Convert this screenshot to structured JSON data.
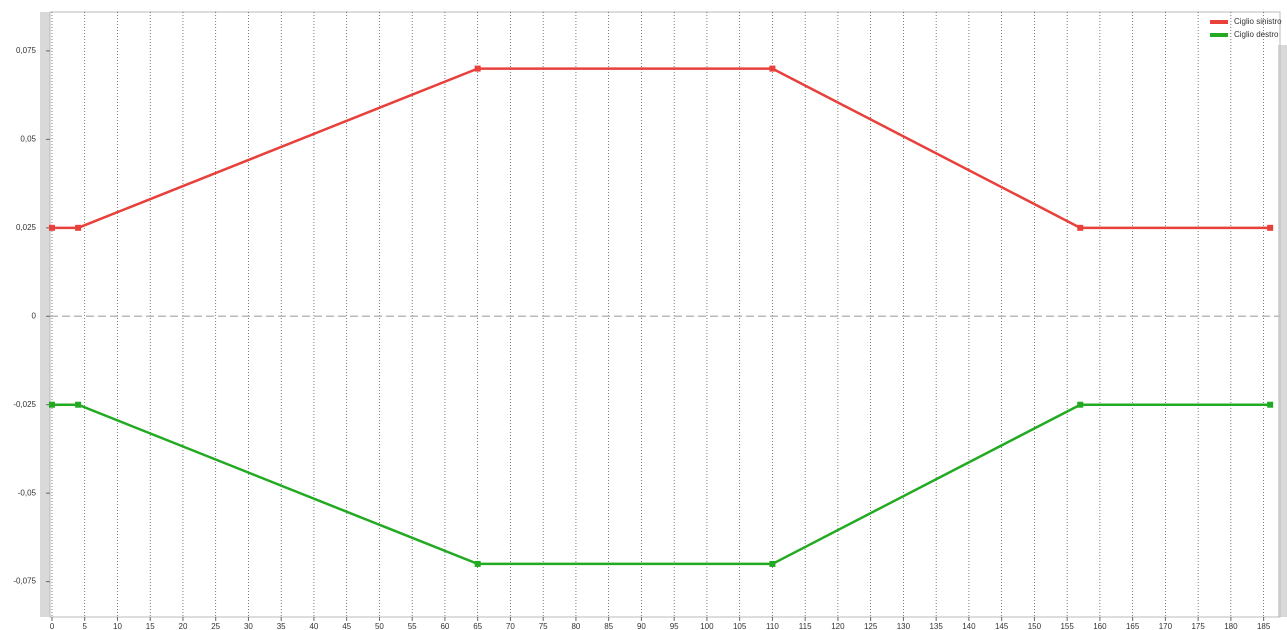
{
  "chart_data": {
    "type": "line",
    "x": [
      0,
      4,
      65,
      110,
      157,
      186
    ],
    "series": [
      {
        "name": "Ciglio sinistro",
        "color": "#e8403a",
        "values": [
          0.025,
          0.025,
          0.07,
          0.07,
          0.025,
          0.025
        ]
      },
      {
        "name": "Ciglio destro",
        "color": "#22aa22",
        "values": [
          -0.025,
          -0.025,
          -0.07,
          -0.07,
          -0.025,
          -0.025
        ]
      }
    ],
    "xlim": [
      -0.3,
      187.5
    ],
    "xticks": [
      0,
      5,
      10,
      15,
      20,
      25,
      30,
      35,
      40,
      45,
      50,
      55,
      60,
      65,
      70,
      75,
      80,
      85,
      90,
      95,
      100,
      105,
      110,
      115,
      120,
      125,
      130,
      135,
      140,
      145,
      150,
      155,
      160,
      165,
      170,
      175,
      180,
      185
    ],
    "ylim": [
      -0.085,
      0.086
    ],
    "yticks": [
      {
        "value": -0.075,
        "label": "-0,075"
      },
      {
        "value": -0.05,
        "label": "-0,05"
      },
      {
        "value": -0.025,
        "label": "-0,025"
      },
      0,
      {
        "value": 0.025,
        "label": "0,025"
      },
      {
        "value": 0.05,
        "label": "0,05"
      },
      {
        "value": 0.075,
        "label": "0,075"
      }
    ],
    "grid": true,
    "legend": "top-right"
  }
}
